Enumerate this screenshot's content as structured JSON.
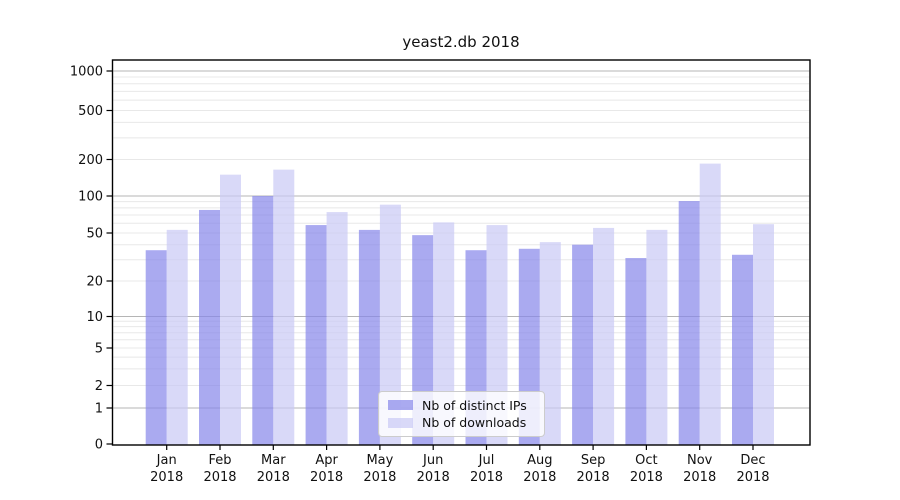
{
  "chart_data": {
    "type": "bar",
    "title": "yeast2.db 2018",
    "categories": [
      "Jan 2018",
      "Feb 2018",
      "Mar 2018",
      "Apr 2018",
      "May 2018",
      "Jun 2018",
      "Jul 2018",
      "Aug 2018",
      "Sep 2018",
      "Oct 2018",
      "Nov 2018",
      "Dec 2018"
    ],
    "series": [
      {
        "name": "Nb of distinct IPs",
        "color": "rgba(134,134,234,0.7)",
        "values": [
          36,
          77,
          100,
          58,
          53,
          48,
          36,
          37,
          40,
          31,
          91,
          33
        ]
      },
      {
        "name": "Nb of downloads",
        "color": "rgba(201,201,245,0.7)",
        "values": [
          53,
          150,
          165,
          74,
          85,
          61,
          58,
          42,
          55,
          53,
          185,
          59
        ]
      }
    ],
    "yscale": "symlog",
    "yticks": [
      0,
      1,
      2,
      5,
      10,
      20,
      50,
      100,
      200,
      500,
      1000
    ],
    "ylim": [
      0,
      1350
    ],
    "xlabel": "",
    "ylabel": "",
    "grid": true,
    "legend_position": "lower center"
  },
  "colors": {
    "grid_major": "#b5b5b5",
    "grid_minor": "#e8e8e8",
    "axis": "#000000"
  }
}
